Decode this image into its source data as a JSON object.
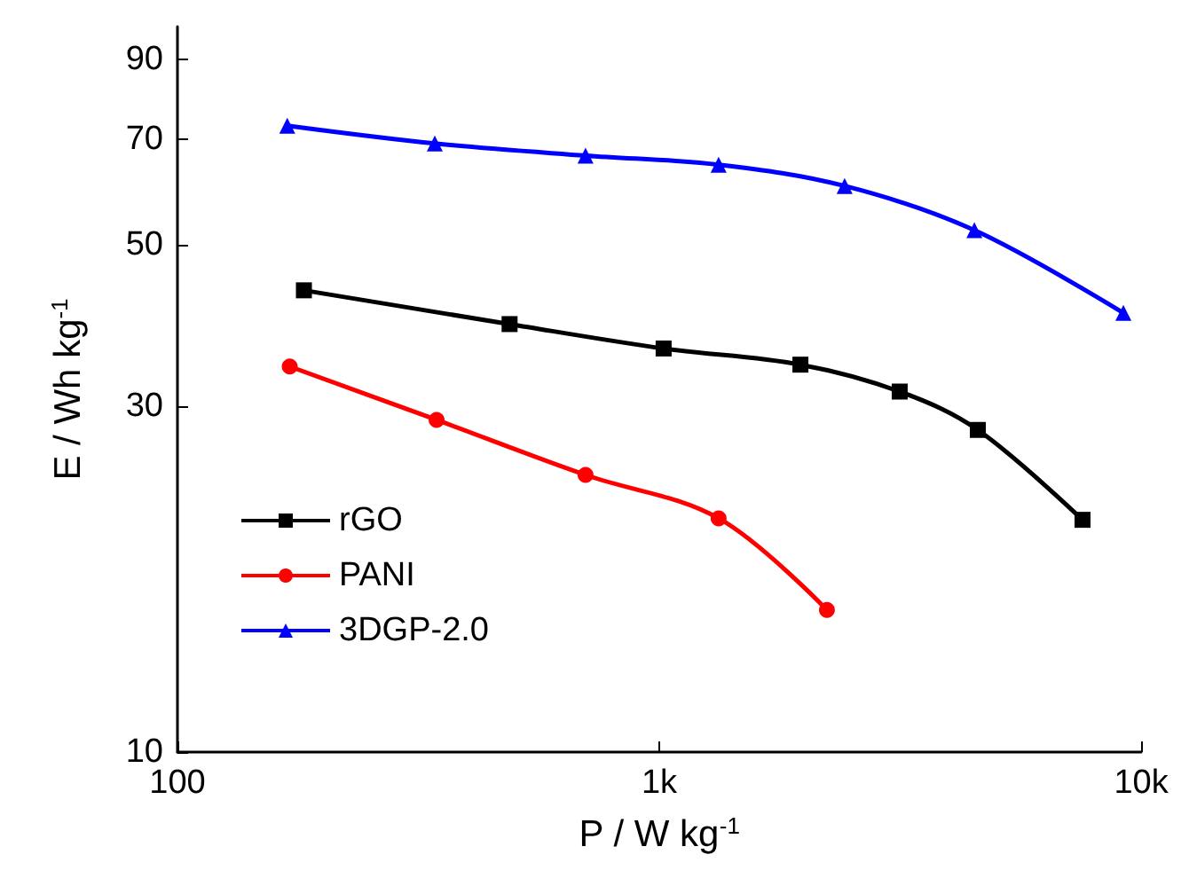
{
  "chart_data": {
    "type": "line",
    "xlabel": "P / W kg$^{-1}$",
    "ylabel": "E / Wh kg$^{-1}$",
    "log": "xy",
    "xlim": [
      100,
      10000
    ],
    "xticks": [
      {
        "value": 100,
        "label": "100"
      },
      {
        "value": 1000,
        "label": "1k"
      },
      {
        "value": 10000,
        "label": "10k"
      }
    ],
    "ylim": [
      10,
      100
    ],
    "yticks": [
      10,
      30,
      50,
      70,
      90
    ],
    "grid": false,
    "legend": "bottom left",
    "series": [
      {
        "name": "rGO",
        "color": "#000000",
        "marker": "square",
        "x": [
          183,
          489,
          1021,
          1963,
          3155,
          4583,
          7558
        ],
        "values": [
          43.3,
          38.9,
          36.0,
          34.2,
          31.4,
          27.8,
          20.9
        ]
      },
      {
        "name": "PANI",
        "color": "#ff0000",
        "marker": "circle",
        "x": [
          171,
          345,
          703,
          1328,
          2228
        ],
        "values": [
          34.0,
          28.7,
          24.1,
          21.0,
          15.7
        ]
      },
      {
        "name": "3DGP-2.0",
        "color": "#0000ff",
        "marker": "triangle",
        "x": [
          169,
          342,
          703,
          1328,
          2425,
          4508,
          9190
        ],
        "values": [
          73.0,
          69.0,
          66.4,
          64.5,
          60.3,
          52.4,
          40.3
        ]
      }
    ]
  }
}
